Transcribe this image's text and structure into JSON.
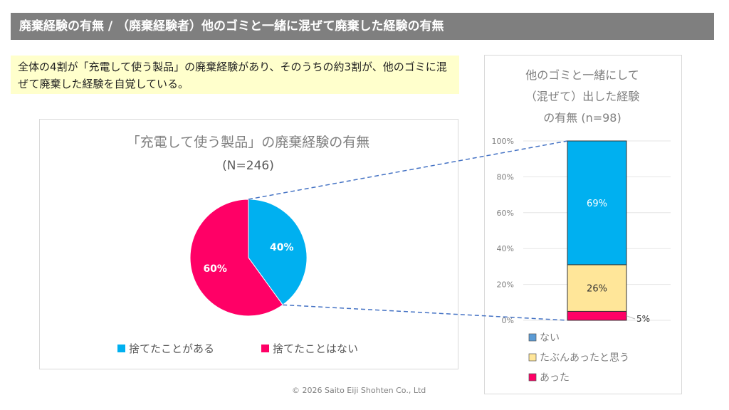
{
  "header": {
    "title": "廃棄経験の有無 / （廃棄経験者）他のゴミと一緒に混ぜて廃棄した経験の有無"
  },
  "note": {
    "text": "全体の4割が「充電して使う製品」の廃棄経験があり、そのうちの約3割が、他のゴミに混ぜて廃棄した経験を自覚している。"
  },
  "footer": {
    "copyright": "© 2026 Saito Eiji Shohten Co., Ltd"
  },
  "chart_data": [
    {
      "type": "pie",
      "title": "「充電して使う製品」の廃棄経験の有無",
      "subtitle": "(N=246)",
      "categories": [
        "捨てたことがある",
        "捨てたことはない"
      ],
      "values": [
        40,
        60
      ],
      "labels": [
        "40%",
        "60%"
      ],
      "colors": [
        "#00B0F0",
        "#FF0066"
      ],
      "legend": "bottom"
    },
    {
      "type": "bar",
      "stacked": true,
      "title_lines": [
        "他のゴミと一緒にして",
        "（混ぜて）出した経験",
        "の有無 (n=98)"
      ],
      "ylim": [
        0,
        100
      ],
      "yticks": [
        "0%",
        "20%",
        "40%",
        "60%",
        "80%",
        "100%"
      ],
      "grid": true,
      "series": [
        {
          "name": "あった",
          "value": 5,
          "label": "5%",
          "color": "#FF0066"
        },
        {
          "name": "たぶんあったと思う",
          "value": 26,
          "label": "26%",
          "color": "#FFE699"
        },
        {
          "name": "ない",
          "value": 69,
          "label": "69%",
          "color": "#00B0F0"
        }
      ],
      "legend_order": [
        "ない",
        "たぶんあったと思う",
        "あった"
      ],
      "legend_colors": [
        "#5B9BD5",
        "#FFE699",
        "#FF0066"
      ],
      "legend": "bottom"
    }
  ]
}
